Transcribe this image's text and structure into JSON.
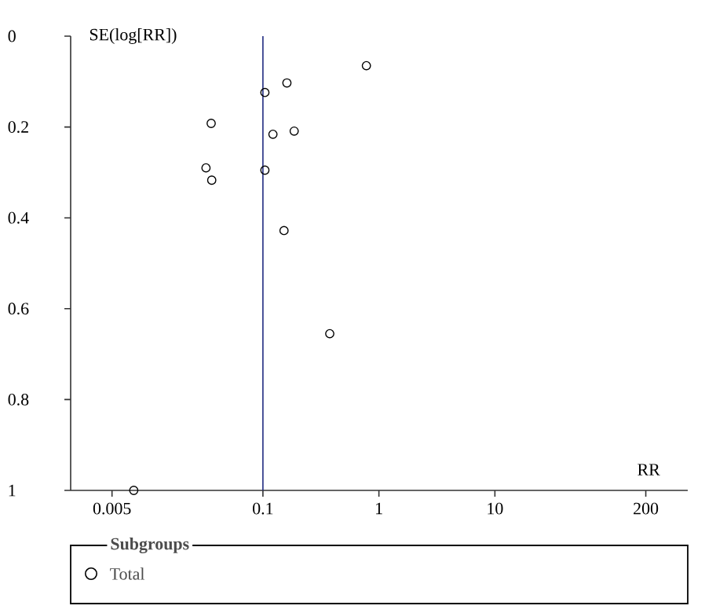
{
  "chart_data": {
    "type": "scatter",
    "xlabel": "RR",
    "ylabel": "SE(log[RR])",
    "legend_title": "Subgroups",
    "legend": "bottom",
    "marker": "circle",
    "log": "x",
    "grid": false,
    "xlim": [
      0.0022,
      460
    ],
    "ylim": [
      1,
      0
    ],
    "xticks": [
      0.005,
      0.1,
      1,
      10,
      200
    ],
    "yticks": [
      0,
      0.2,
      0.4,
      0.6,
      0.8,
      1
    ],
    "ref_lines": [
      {
        "axis": "x",
        "value": 0.1,
        "color": "#1f2a80"
      }
    ],
    "series": [
      {
        "name": "Total",
        "color": "#000000",
        "x": [
          0.78,
          0.161,
          0.104,
          0.0358,
          0.122,
          0.186,
          0.0323,
          0.0362,
          0.104,
          0.152,
          0.377,
          0.0077
        ],
        "values": [
          0.065,
          0.103,
          0.124,
          0.192,
          0.216,
          0.209,
          0.29,
          0.317,
          0.295,
          0.428,
          0.655,
          1.0
        ]
      }
    ]
  }
}
